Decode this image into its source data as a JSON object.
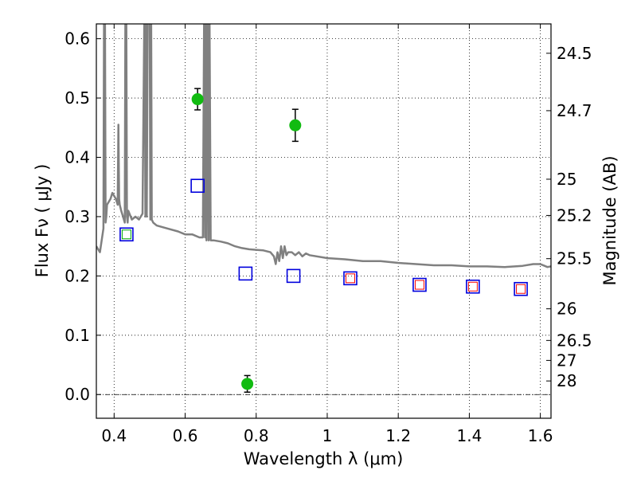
{
  "chart_data": {
    "type": "scatter",
    "xlabel": "Wavelength  λ (μm)",
    "ylabel": "Flux  Fν  ( μJy )",
    "y2label": "Magnitude (AB)",
    "xlim": [
      0.35,
      1.63
    ],
    "ylim": [
      -0.04,
      0.625
    ],
    "grid": true,
    "x_ticks": [
      {
        "value": 0.4,
        "label": "0.4"
      },
      {
        "value": 0.6,
        "label": "0.6"
      },
      {
        "value": 0.8,
        "label": "0.8"
      },
      {
        "value": 1.0,
        "label": "1"
      },
      {
        "value": 1.2,
        "label": "1.2"
      },
      {
        "value": 1.4,
        "label": "1.4"
      },
      {
        "value": 1.6,
        "label": "1.6"
      }
    ],
    "y_ticks": [
      {
        "value": 0.0,
        "label": "0.0"
      },
      {
        "value": 0.1,
        "label": "0.1"
      },
      {
        "value": 0.2,
        "label": "0.2"
      },
      {
        "value": 0.3,
        "label": "0.3"
      },
      {
        "value": 0.4,
        "label": "0.4"
      },
      {
        "value": 0.5,
        "label": "0.5"
      },
      {
        "value": 0.6,
        "label": "0.6"
      }
    ],
    "y2_ticks": [
      {
        "magnitude": 24.5,
        "label": "24.5"
      },
      {
        "magnitude": 24.7,
        "label": "24.7"
      },
      {
        "magnitude": 25.0,
        "label": "25"
      },
      {
        "magnitude": 25.2,
        "label": "25.2"
      },
      {
        "magnitude": 25.5,
        "label": "25.5"
      },
      {
        "magnitude": 26.0,
        "label": "26"
      },
      {
        "magnitude": 26.5,
        "label": "26.5"
      },
      {
        "magnitude": 27.0,
        "label": "27"
      },
      {
        "magnitude": 28.0,
        "label": "28"
      }
    ],
    "series": [
      {
        "kind": "model_spectrum",
        "color": "#808080",
        "x": [
          0.35,
          0.36,
          0.37,
          0.372,
          0.374,
          0.376,
          0.378,
          0.38,
          0.39,
          0.395,
          0.4,
          0.405,
          0.41,
          0.412,
          0.414,
          0.416,
          0.42,
          0.425,
          0.43,
          0.432,
          0.434,
          0.436,
          0.438,
          0.44,
          0.45,
          0.46,
          0.47,
          0.48,
          0.486,
          0.488,
          0.49,
          0.492,
          0.495,
          0.5,
          0.502,
          0.504,
          0.506,
          0.51,
          0.52,
          0.55,
          0.58,
          0.6,
          0.62,
          0.64,
          0.65,
          0.654,
          0.656,
          0.658,
          0.66,
          0.664,
          0.666,
          0.668,
          0.672,
          0.674,
          0.68,
          0.7,
          0.72,
          0.74,
          0.76,
          0.78,
          0.8,
          0.82,
          0.84,
          0.85,
          0.855,
          0.86,
          0.865,
          0.87,
          0.875,
          0.88,
          0.885,
          0.89,
          0.9,
          0.91,
          0.92,
          0.93,
          0.94,
          0.95,
          1.0,
          1.05,
          1.1,
          1.15,
          1.2,
          1.25,
          1.3,
          1.35,
          1.4,
          1.45,
          1.5,
          1.55,
          1.58,
          1.6,
          1.62,
          1.63
        ],
        "y": [
          0.25,
          0.24,
          0.28,
          0.7,
          0.7,
          0.29,
          0.3,
          0.32,
          0.33,
          0.34,
          0.335,
          0.33,
          0.32,
          0.455,
          0.33,
          0.32,
          0.31,
          0.3,
          0.29,
          0.7,
          0.7,
          0.3,
          0.29,
          0.31,
          0.295,
          0.3,
          0.295,
          0.305,
          0.7,
          0.3,
          0.7,
          0.3,
          0.7,
          0.7,
          0.295,
          0.7,
          0.295,
          0.29,
          0.285,
          0.28,
          0.275,
          0.27,
          0.27,
          0.265,
          0.265,
          0.7,
          0.265,
          0.7,
          0.26,
          0.7,
          0.26,
          0.7,
          0.26,
          0.26,
          0.26,
          0.258,
          0.255,
          0.25,
          0.247,
          0.245,
          0.244,
          0.243,
          0.24,
          0.233,
          0.22,
          0.24,
          0.225,
          0.25,
          0.23,
          0.25,
          0.235,
          0.24,
          0.24,
          0.235,
          0.24,
          0.233,
          0.238,
          0.235,
          0.23,
          0.228,
          0.225,
          0.225,
          0.222,
          0.22,
          0.218,
          0.218,
          0.216,
          0.216,
          0.215,
          0.217,
          0.22,
          0.22,
          0.215,
          0.216
        ]
      },
      {
        "kind": "model_photometry",
        "color": "#0000dd",
        "x": [
          0.435,
          0.635,
          0.77,
          0.905,
          1.065,
          1.26,
          1.41,
          1.545
        ],
        "y": [
          0.27,
          0.352,
          0.204,
          0.2,
          0.196,
          0.185,
          0.182,
          0.178
        ]
      },
      {
        "kind": "inner_markers",
        "colors": [
          "#00aa00",
          "#ff0000",
          "#ff0000",
          "#ff0000",
          "#ff0000"
        ],
        "x": [
          0.435,
          1.065,
          1.26,
          1.41,
          1.545
        ],
        "y": [
          0.27,
          0.196,
          0.185,
          0.182,
          0.178
        ]
      },
      {
        "kind": "observed",
        "color": "#11bb11",
        "x": [
          0.635,
          0.775,
          0.91
        ],
        "y": [
          0.498,
          0.018,
          0.454
        ],
        "err": [
          0.018,
          0.014,
          0.027
        ]
      }
    ]
  }
}
